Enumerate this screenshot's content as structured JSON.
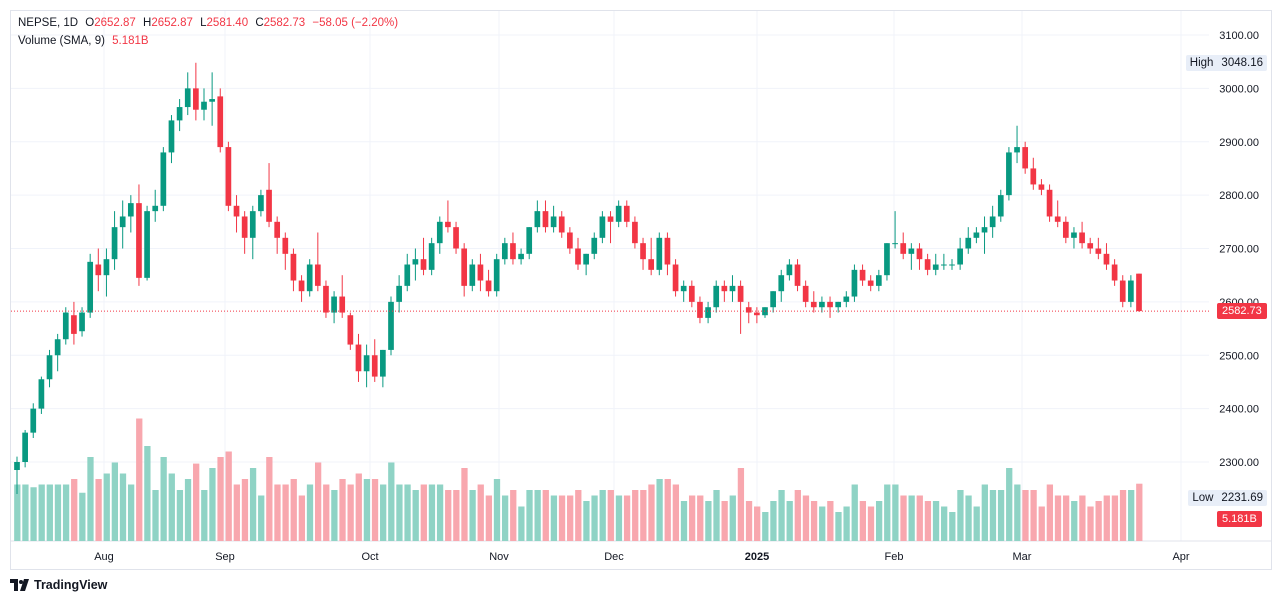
{
  "legend": {
    "symbol": "NEPSE",
    "interval": "1D",
    "o_label": "O",
    "o_value": "2652.87",
    "h_label": "H",
    "h_value": "2652.87",
    "l_label": "L",
    "l_value": "2581.40",
    "c_label": "C",
    "c_value": "2582.73",
    "change": "−58.05 (−2.20%)",
    "volume_label": "Volume (SMA, 9)",
    "volume_value": "5.181B"
  },
  "price_scale": {
    "last_price": "2582.73",
    "last_volume": "5.181B",
    "high_label": "High",
    "high_value": "3048.16",
    "low_label": "Low",
    "low_value": "2231.69"
  },
  "branding": {
    "name": "TradingView",
    "icon": "tradingview-logo-icon"
  },
  "colors": {
    "up": "#089981",
    "down": "#f23645",
    "vol_up": "#8fd3c5",
    "vol_down": "#f8a7ae"
  },
  "chart_data": {
    "type": "candlestick",
    "symbol": "NEPSE",
    "interval": "1D",
    "y_axis": {
      "ticks": [
        2300,
        2400,
        2500,
        2600,
        2700,
        2800,
        2900,
        3000,
        3100
      ],
      "side": "right"
    },
    "x_axis": {
      "ticks": [
        "Aug",
        "Sep",
        "Oct",
        "Nov",
        "Dec",
        "2025",
        "Feb",
        "Mar",
        "Apr"
      ]
    },
    "grid": true,
    "candles": [
      [
        2285,
        2310,
        2240,
        2300
      ],
      [
        2300,
        2360,
        2290,
        2355
      ],
      [
        2355,
        2410,
        2345,
        2400
      ],
      [
        2400,
        2460,
        2390,
        2455
      ],
      [
        2455,
        2510,
        2440,
        2500
      ],
      [
        2500,
        2540,
        2470,
        2530
      ],
      [
        2530,
        2590,
        2520,
        2580
      ],
      [
        2575,
        2600,
        2520,
        2540
      ],
      [
        2545,
        2590,
        2535,
        2580
      ],
      [
        2580,
        2690,
        2570,
        2675
      ],
      [
        2670,
        2700,
        2620,
        2650
      ],
      [
        2650,
        2700,
        2610,
        2680
      ],
      [
        2680,
        2770,
        2660,
        2740
      ],
      [
        2740,
        2790,
        2700,
        2760
      ],
      [
        2760,
        2800,
        2730,
        2785
      ],
      [
        2785,
        2820,
        2630,
        2645
      ],
      [
        2645,
        2780,
        2640,
        2770
      ],
      [
        2770,
        2810,
        2750,
        2780
      ],
      [
        2780,
        2890,
        2770,
        2880
      ],
      [
        2880,
        2950,
        2860,
        2940
      ],
      [
        2940,
        2980,
        2920,
        2965
      ],
      [
        2965,
        3030,
        2950,
        3000
      ],
      [
        3000,
        3048,
        2940,
        2960
      ],
      [
        2960,
        3000,
        2940,
        2975
      ],
      [
        2975,
        3030,
        2930,
        2980
      ],
      [
        2985,
        3000,
        2880,
        2890
      ],
      [
        2890,
        2900,
        2770,
        2780
      ],
      [
        2780,
        2800,
        2730,
        2760
      ],
      [
        2760,
        2770,
        2690,
        2720
      ],
      [
        2720,
        2780,
        2680,
        2770
      ],
      [
        2770,
        2810,
        2760,
        2800
      ],
      [
        2810,
        2860,
        2740,
        2750
      ],
      [
        2750,
        2760,
        2690,
        2720
      ],
      [
        2720,
        2730,
        2660,
        2690
      ],
      [
        2690,
        2700,
        2620,
        2640
      ],
      [
        2640,
        2650,
        2600,
        2620
      ],
      [
        2620,
        2680,
        2610,
        2670
      ],
      [
        2670,
        2730,
        2620,
        2630
      ],
      [
        2630,
        2640,
        2570,
        2580
      ],
      [
        2580,
        2620,
        2560,
        2610
      ],
      [
        2610,
        2650,
        2570,
        2580
      ],
      [
        2575,
        2580,
        2510,
        2520
      ],
      [
        2520,
        2540,
        2450,
        2470
      ],
      [
        2470,
        2520,
        2440,
        2500
      ],
      [
        2500,
        2530,
        2450,
        2460
      ],
      [
        2460,
        2510,
        2440,
        2510
      ],
      [
        2510,
        2610,
        2500,
        2600
      ],
      [
        2600,
        2650,
        2580,
        2630
      ],
      [
        2630,
        2690,
        2620,
        2670
      ],
      [
        2670,
        2700,
        2640,
        2680
      ],
      [
        2680,
        2720,
        2650,
        2660
      ],
      [
        2660,
        2720,
        2650,
        2710
      ],
      [
        2710,
        2760,
        2690,
        2750
      ],
      [
        2750,
        2790,
        2730,
        2740
      ],
      [
        2740,
        2750,
        2690,
        2700
      ],
      [
        2700,
        2710,
        2610,
        2630
      ],
      [
        2630,
        2680,
        2620,
        2670
      ],
      [
        2670,
        2690,
        2620,
        2640
      ],
      [
        2640,
        2660,
        2610,
        2620
      ],
      [
        2620,
        2690,
        2610,
        2680
      ],
      [
        2680,
        2720,
        2670,
        2710
      ],
      [
        2710,
        2730,
        2670,
        2680
      ],
      [
        2680,
        2700,
        2670,
        2690
      ],
      [
        2690,
        2740,
        2680,
        2740
      ],
      [
        2740,
        2790,
        2730,
        2770
      ],
      [
        2770,
        2790,
        2730,
        2740
      ],
      [
        2740,
        2780,
        2730,
        2760
      ],
      [
        2760,
        2770,
        2720,
        2730
      ],
      [
        2730,
        2740,
        2690,
        2700
      ],
      [
        2700,
        2720,
        2660,
        2670
      ],
      [
        2670,
        2690,
        2650,
        2690
      ],
      [
        2690,
        2730,
        2680,
        2720
      ],
      [
        2720,
        2770,
        2710,
        2760
      ],
      [
        2760,
        2770,
        2710,
        2750
      ],
      [
        2750,
        2790,
        2740,
        2780
      ],
      [
        2780,
        2790,
        2740,
        2750
      ],
      [
        2750,
        2760,
        2700,
        2710
      ],
      [
        2710,
        2720,
        2660,
        2680
      ],
      [
        2680,
        2720,
        2650,
        2660
      ],
      [
        2660,
        2730,
        2650,
        2720
      ],
      [
        2720,
        2730,
        2650,
        2670
      ],
      [
        2670,
        2680,
        2610,
        2620
      ],
      [
        2620,
        2640,
        2600,
        2630
      ],
      [
        2630,
        2640,
        2590,
        2600
      ],
      [
        2600,
        2610,
        2560,
        2570
      ],
      [
        2570,
        2600,
        2560,
        2590
      ],
      [
        2590,
        2640,
        2580,
        2630
      ],
      [
        2630,
        2640,
        2600,
        2620
      ],
      [
        2620,
        2650,
        2600,
        2630
      ],
      [
        2630,
        2640,
        2540,
        2600
      ],
      [
        2590,
        2600,
        2560,
        2580
      ],
      [
        2580,
        2590,
        2560,
        2575
      ],
      [
        2575,
        2590,
        2570,
        2590
      ],
      [
        2590,
        2620,
        2580,
        2620
      ],
      [
        2620,
        2660,
        2600,
        2650
      ],
      [
        2650,
        2680,
        2640,
        2670
      ],
      [
        2670,
        2680,
        2620,
        2630
      ],
      [
        2630,
        2640,
        2590,
        2600
      ],
      [
        2600,
        2620,
        2580,
        2590
      ],
      [
        2590,
        2610,
        2580,
        2600
      ],
      [
        2600,
        2610,
        2570,
        2590
      ],
      [
        2590,
        2600,
        2580,
        2600
      ],
      [
        2600,
        2620,
        2590,
        2610
      ],
      [
        2610,
        2670,
        2600,
        2660
      ],
      [
        2660,
        2670,
        2630,
        2640
      ],
      [
        2640,
        2650,
        2620,
        2630
      ],
      [
        2630,
        2660,
        2620,
        2650
      ],
      [
        2650,
        2710,
        2640,
        2710
      ],
      [
        2710,
        2770,
        2700,
        2710
      ],
      [
        2710,
        2730,
        2680,
        2690
      ],
      [
        2690,
        2710,
        2660,
        2700
      ],
      [
        2700,
        2710,
        2660,
        2680
      ],
      [
        2680,
        2690,
        2650,
        2660
      ],
      [
        2660,
        2690,
        2650,
        2670
      ],
      [
        2670,
        2690,
        2660,
        2670
      ],
      [
        2670,
        2680,
        2660,
        2670
      ],
      [
        2670,
        2720,
        2660,
        2700
      ],
      [
        2700,
        2740,
        2690,
        2720
      ],
      [
        2720,
        2740,
        2710,
        2730
      ],
      [
        2730,
        2760,
        2690,
        2740
      ],
      [
        2740,
        2780,
        2720,
        2760
      ],
      [
        2760,
        2810,
        2750,
        2800
      ],
      [
        2800,
        2890,
        2790,
        2880
      ],
      [
        2880,
        2930,
        2860,
        2890
      ],
      [
        2890,
        2900,
        2840,
        2850
      ],
      [
        2850,
        2870,
        2810,
        2820
      ],
      [
        2820,
        2830,
        2800,
        2810
      ],
      [
        2810,
        2820,
        2750,
        2760
      ],
      [
        2760,
        2790,
        2740,
        2750
      ],
      [
        2750,
        2760,
        2710,
        2720
      ],
      [
        2720,
        2740,
        2700,
        2730
      ],
      [
        2730,
        2750,
        2700,
        2710
      ],
      [
        2710,
        2720,
        2690,
        2700
      ],
      [
        2700,
        2720,
        2680,
        2690
      ],
      [
        2690,
        2710,
        2660,
        2670
      ],
      [
        2670,
        2680,
        2630,
        2640
      ],
      [
        2640,
        2650,
        2590,
        2600
      ],
      [
        2600,
        2650,
        2590,
        2640
      ],
      [
        2652.87,
        2652.87,
        2581.4,
        2582.73
      ]
    ],
    "volume_sma_9": 5.181,
    "volume_unit": "B",
    "high": 3048.16,
    "low": 2231.69,
    "last": 2582.73,
    "change": -58.05,
    "change_pct": -2.2
  }
}
